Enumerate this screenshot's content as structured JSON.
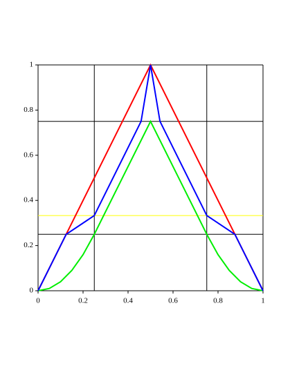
{
  "chart_data": {
    "type": "line",
    "xlim": [
      0,
      1
    ],
    "ylim": [
      0,
      1
    ],
    "xticks": [
      0,
      0.2,
      0.4,
      0.6,
      0.8,
      1
    ],
    "yticks": [
      0,
      0.2,
      0.4,
      0.6,
      0.8,
      1
    ],
    "series": [
      {
        "color": "#000000",
        "x": [
          0,
          1
        ],
        "values": [
          0.25,
          0.25
        ]
      },
      {
        "color": "#000000",
        "x": [
          0,
          1
        ],
        "values": [
          0.75,
          0.75
        ]
      },
      {
        "color": "#000000",
        "x": [
          0,
          1
        ],
        "values": [
          1,
          1
        ]
      },
      {
        "color": "#000000",
        "x": [
          0.25,
          0.25
        ],
        "values": [
          0,
          1
        ]
      },
      {
        "color": "#000000",
        "x": [
          0.75,
          0.75
        ],
        "values": [
          0,
          1
        ]
      },
      {
        "color": "#000000",
        "x": [
          1,
          1
        ],
        "values": [
          0,
          1
        ]
      },
      {
        "color": "#ffff00",
        "x": [
          0,
          1
        ],
        "values": [
          0.333,
          0.333
        ]
      },
      {
        "color": "#ff0000",
        "x": [
          0,
          0.5,
          1
        ],
        "values": [
          0,
          1,
          0
        ]
      },
      {
        "color": "#00ee00",
        "x": [
          0,
          0.05,
          0.1,
          0.15,
          0.2,
          0.25,
          0.5,
          0.75,
          0.8,
          0.85,
          0.9,
          0.95,
          1
        ],
        "values": [
          0,
          0.01,
          0.04,
          0.09,
          0.16,
          0.25,
          0.75,
          0.25,
          0.16,
          0.09,
          0.04,
          0.01,
          0
        ]
      },
      {
        "color": "#0000ff",
        "x": [
          0,
          0.125,
          0.25,
          0.458,
          0.5,
          0.542,
          0.75,
          0.875,
          1
        ],
        "values": [
          0,
          0.25,
          0.333,
          0.75,
          1,
          0.75,
          0.333,
          0.25,
          0
        ]
      }
    ]
  }
}
